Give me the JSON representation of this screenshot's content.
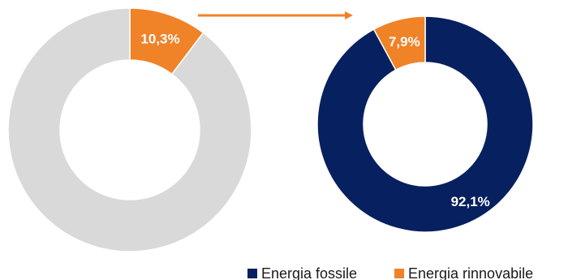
{
  "colors": {
    "fossil": "#07205F",
    "renewable": "#F08228",
    "remainder": "#D9D9D9",
    "arrow": "#F08228"
  },
  "legend": {
    "fossil": "Energia fossile",
    "renewable": "Energia rinnovabile"
  },
  "chart_data": [
    {
      "type": "pie",
      "subtype": "donut",
      "slices": [
        {
          "name": "",
          "value": 10.3,
          "label": "10,3%",
          "color": "#F08228"
        },
        {
          "name": "",
          "value": 89.7,
          "label": "",
          "color": "#D9D9D9"
        }
      ]
    },
    {
      "type": "pie",
      "subtype": "donut",
      "slices": [
        {
          "name": "Energia fossile",
          "value": 92.1,
          "label": "92,1%",
          "color": "#07205F"
        },
        {
          "name": "Energia rinnovabile",
          "value": 7.9,
          "label": "7,9%",
          "color": "#F08228"
        }
      ]
    }
  ]
}
